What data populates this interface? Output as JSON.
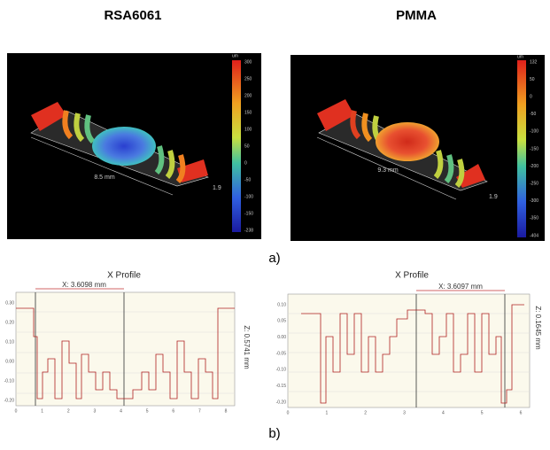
{
  "titles": {
    "left": "RSA6061",
    "right": "PMMA"
  },
  "panel_a": {
    "label": "a)",
    "left": {
      "unit": "um",
      "scale": [
        "300",
        "250",
        "200",
        "150",
        "100",
        "50",
        "0",
        "-50",
        "-100",
        "-150",
        "-238"
      ],
      "length": "8.5 mm",
      "depth": "1.9"
    },
    "right": {
      "unit": "um",
      "scale": [
        "132",
        "50",
        "0",
        "-50",
        "-100",
        "-150",
        "-200",
        "-250",
        "-300",
        "-350",
        "-404"
      ],
      "length": "9.3 mm",
      "depth": "1.9"
    }
  },
  "panel_b": {
    "label": "b)",
    "left": {
      "title": "X Profile",
      "x_measure": "X: 3.6098 mm",
      "z_measure": "Z: 0.5741 mm",
      "y_labels": [
        "0.30",
        "0.20",
        "0.10",
        "0.00",
        "-0.10",
        "-0.20"
      ],
      "x_labels": [
        "0",
        "1",
        "2",
        "3",
        "4",
        "5",
        "6",
        "7",
        "8"
      ]
    },
    "right": {
      "title": "X Profile",
      "x_measure": "X: 3.6097 mm",
      "z_measure": "Z: 0.1645 mm",
      "y_labels": [
        "0.10",
        "0.05",
        "0.00",
        "-0.05",
        "-0.10",
        "-0.15",
        "-0.20"
      ],
      "x_labels": [
        "0",
        "1",
        "2",
        "3",
        "4",
        "5",
        "6"
      ]
    }
  }
}
